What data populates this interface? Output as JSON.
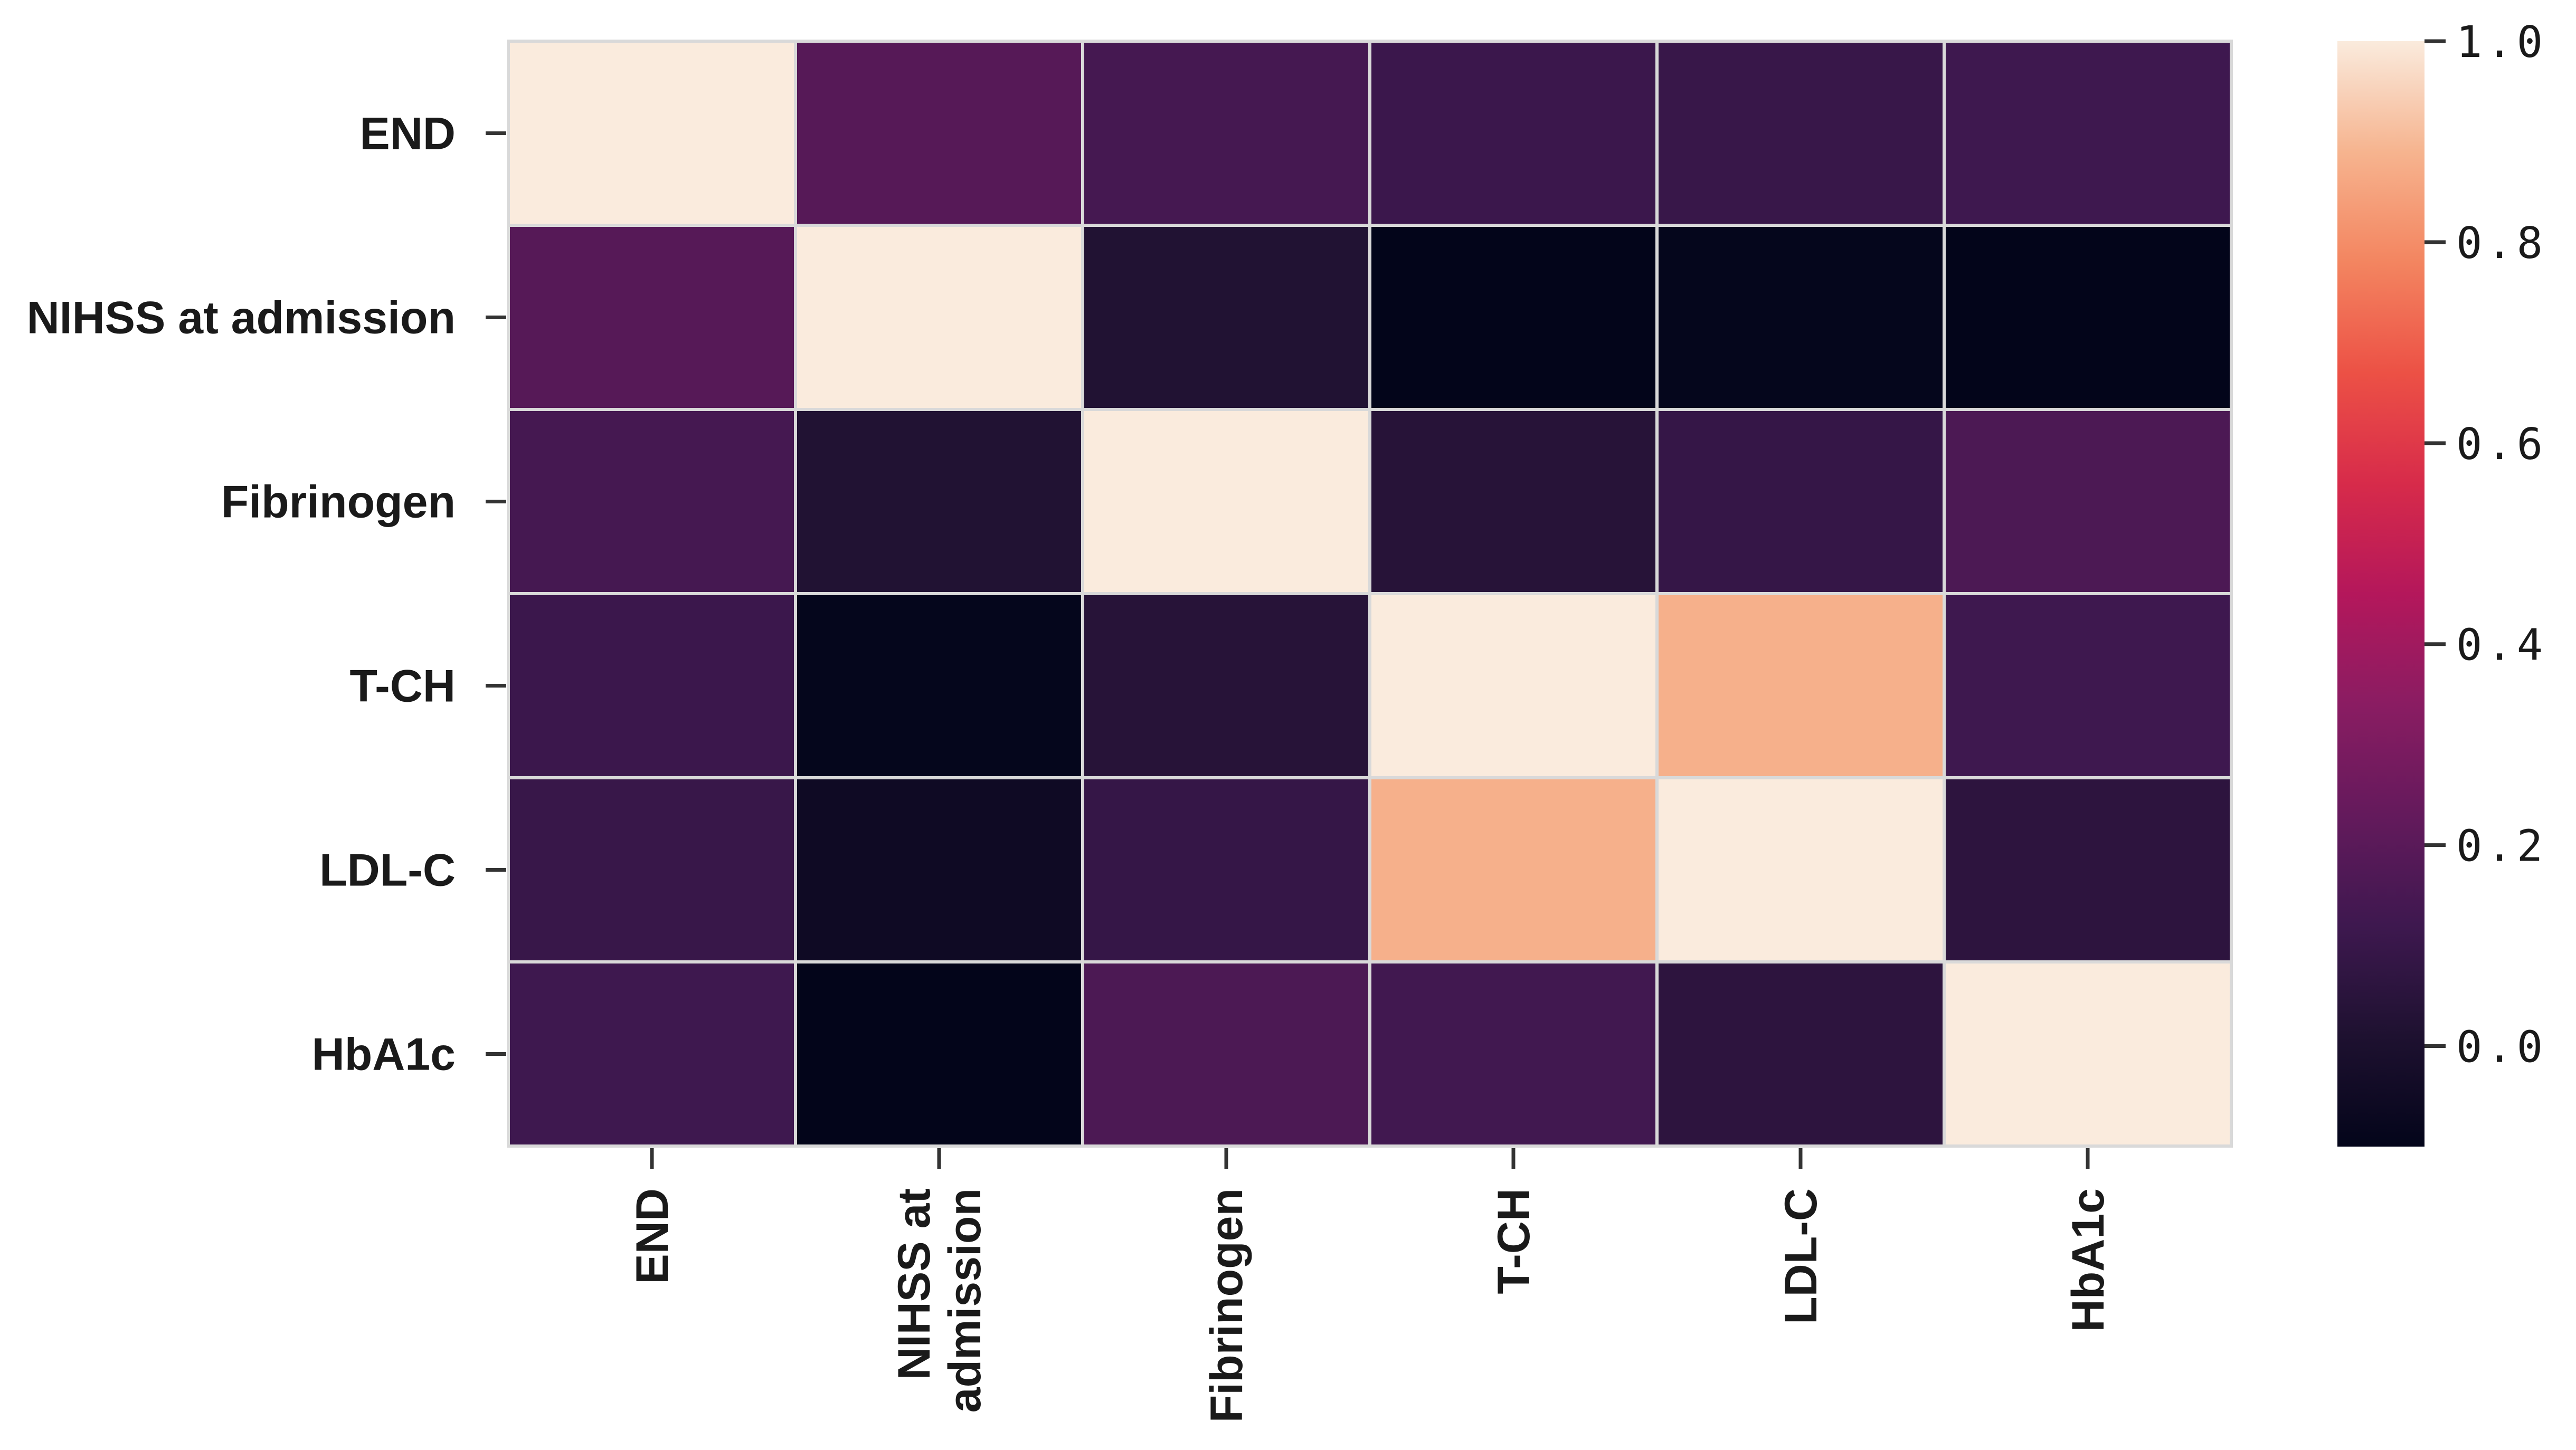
{
  "chart_data": {
    "type": "heatmap",
    "title": "",
    "xlabel": "",
    "ylabel": "",
    "row_labels": [
      "END",
      "NIHSS at admission",
      "Fibrinogen",
      "T-CH",
      "LDL-C",
      "HbA1c"
    ],
    "col_labels": [
      "END",
      "NIHSS at\nadmission",
      "Fibrinogen",
      "T-CH",
      "LDL-C",
      "HbA1c"
    ],
    "values": [
      [
        1.0,
        0.19,
        0.14,
        0.11,
        0.1,
        0.12
      ],
      [
        0.19,
        1.0,
        0.02,
        -0.11,
        -0.09,
        -0.11
      ],
      [
        0.14,
        0.02,
        1.0,
        0.04,
        0.09,
        0.16
      ],
      [
        0.11,
        -0.09,
        0.04,
        1.0,
        0.88,
        0.12
      ],
      [
        0.1,
        -0.05,
        0.09,
        0.88,
        1.0,
        0.06
      ],
      [
        0.12,
        -0.11,
        0.16,
        0.13,
        0.06,
        1.0
      ]
    ],
    "colorbar": {
      "colormap": "rocket",
      "vmin": -0.1,
      "vmax": 1.0,
      "ticks": [
        0.0,
        0.2,
        0.4,
        0.6,
        0.8,
        1.0
      ],
      "tick_labels": [
        "0.0",
        "0.2",
        "0.4",
        "0.6",
        "0.8",
        "1.0"
      ]
    }
  }
}
